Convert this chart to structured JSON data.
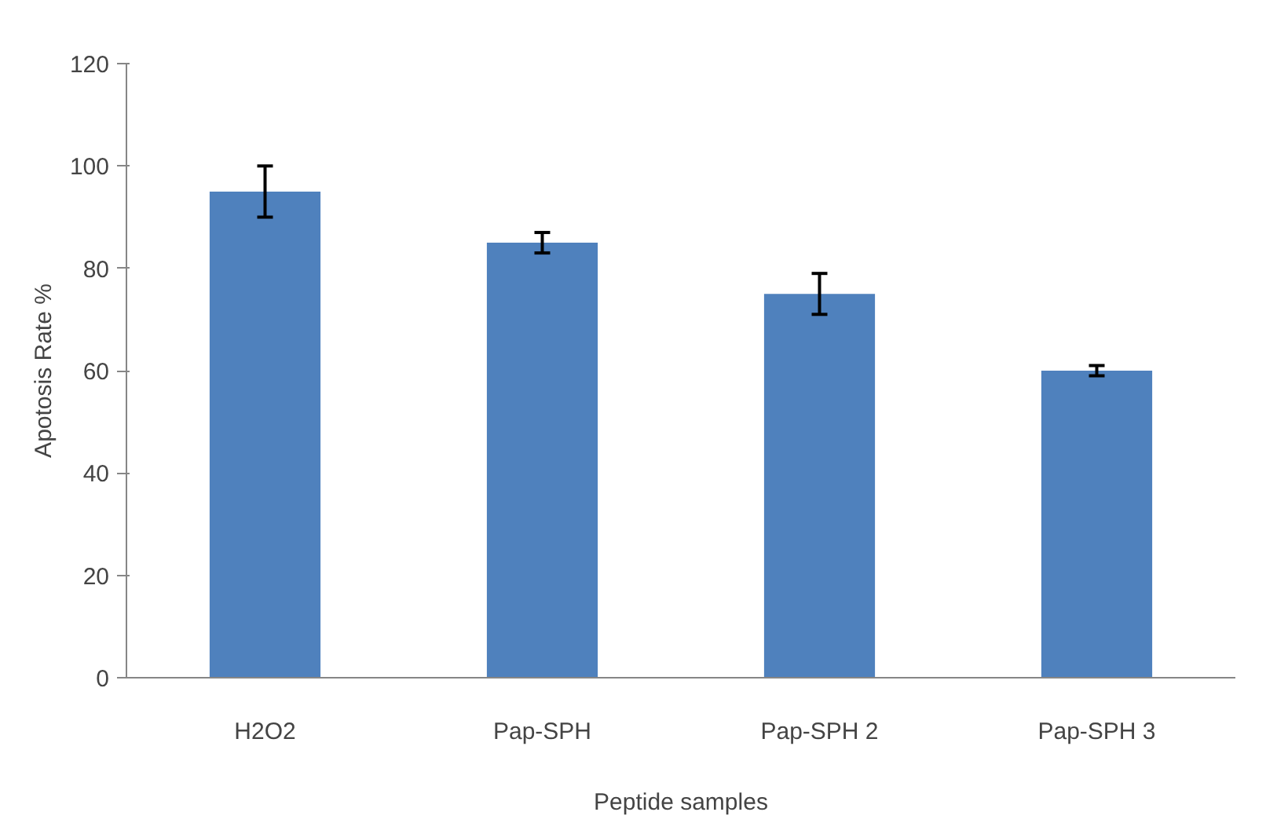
{
  "chart_data": {
    "type": "bar",
    "xlabel": "Peptide samples",
    "ylabel": "Apotosis Rate %",
    "categories": [
      "H2O2",
      "Pap-SPH",
      "Pap-SPH 2",
      "Pap-SPH 3"
    ],
    "values": [
      95,
      85,
      75,
      60
    ],
    "errors": [
      5,
      2,
      4,
      1
    ],
    "color": "#4f81bd",
    "ylim": [
      0,
      120
    ],
    "yticks": [
      0,
      20,
      40,
      60,
      80,
      100,
      120
    ],
    "grid": false
  }
}
